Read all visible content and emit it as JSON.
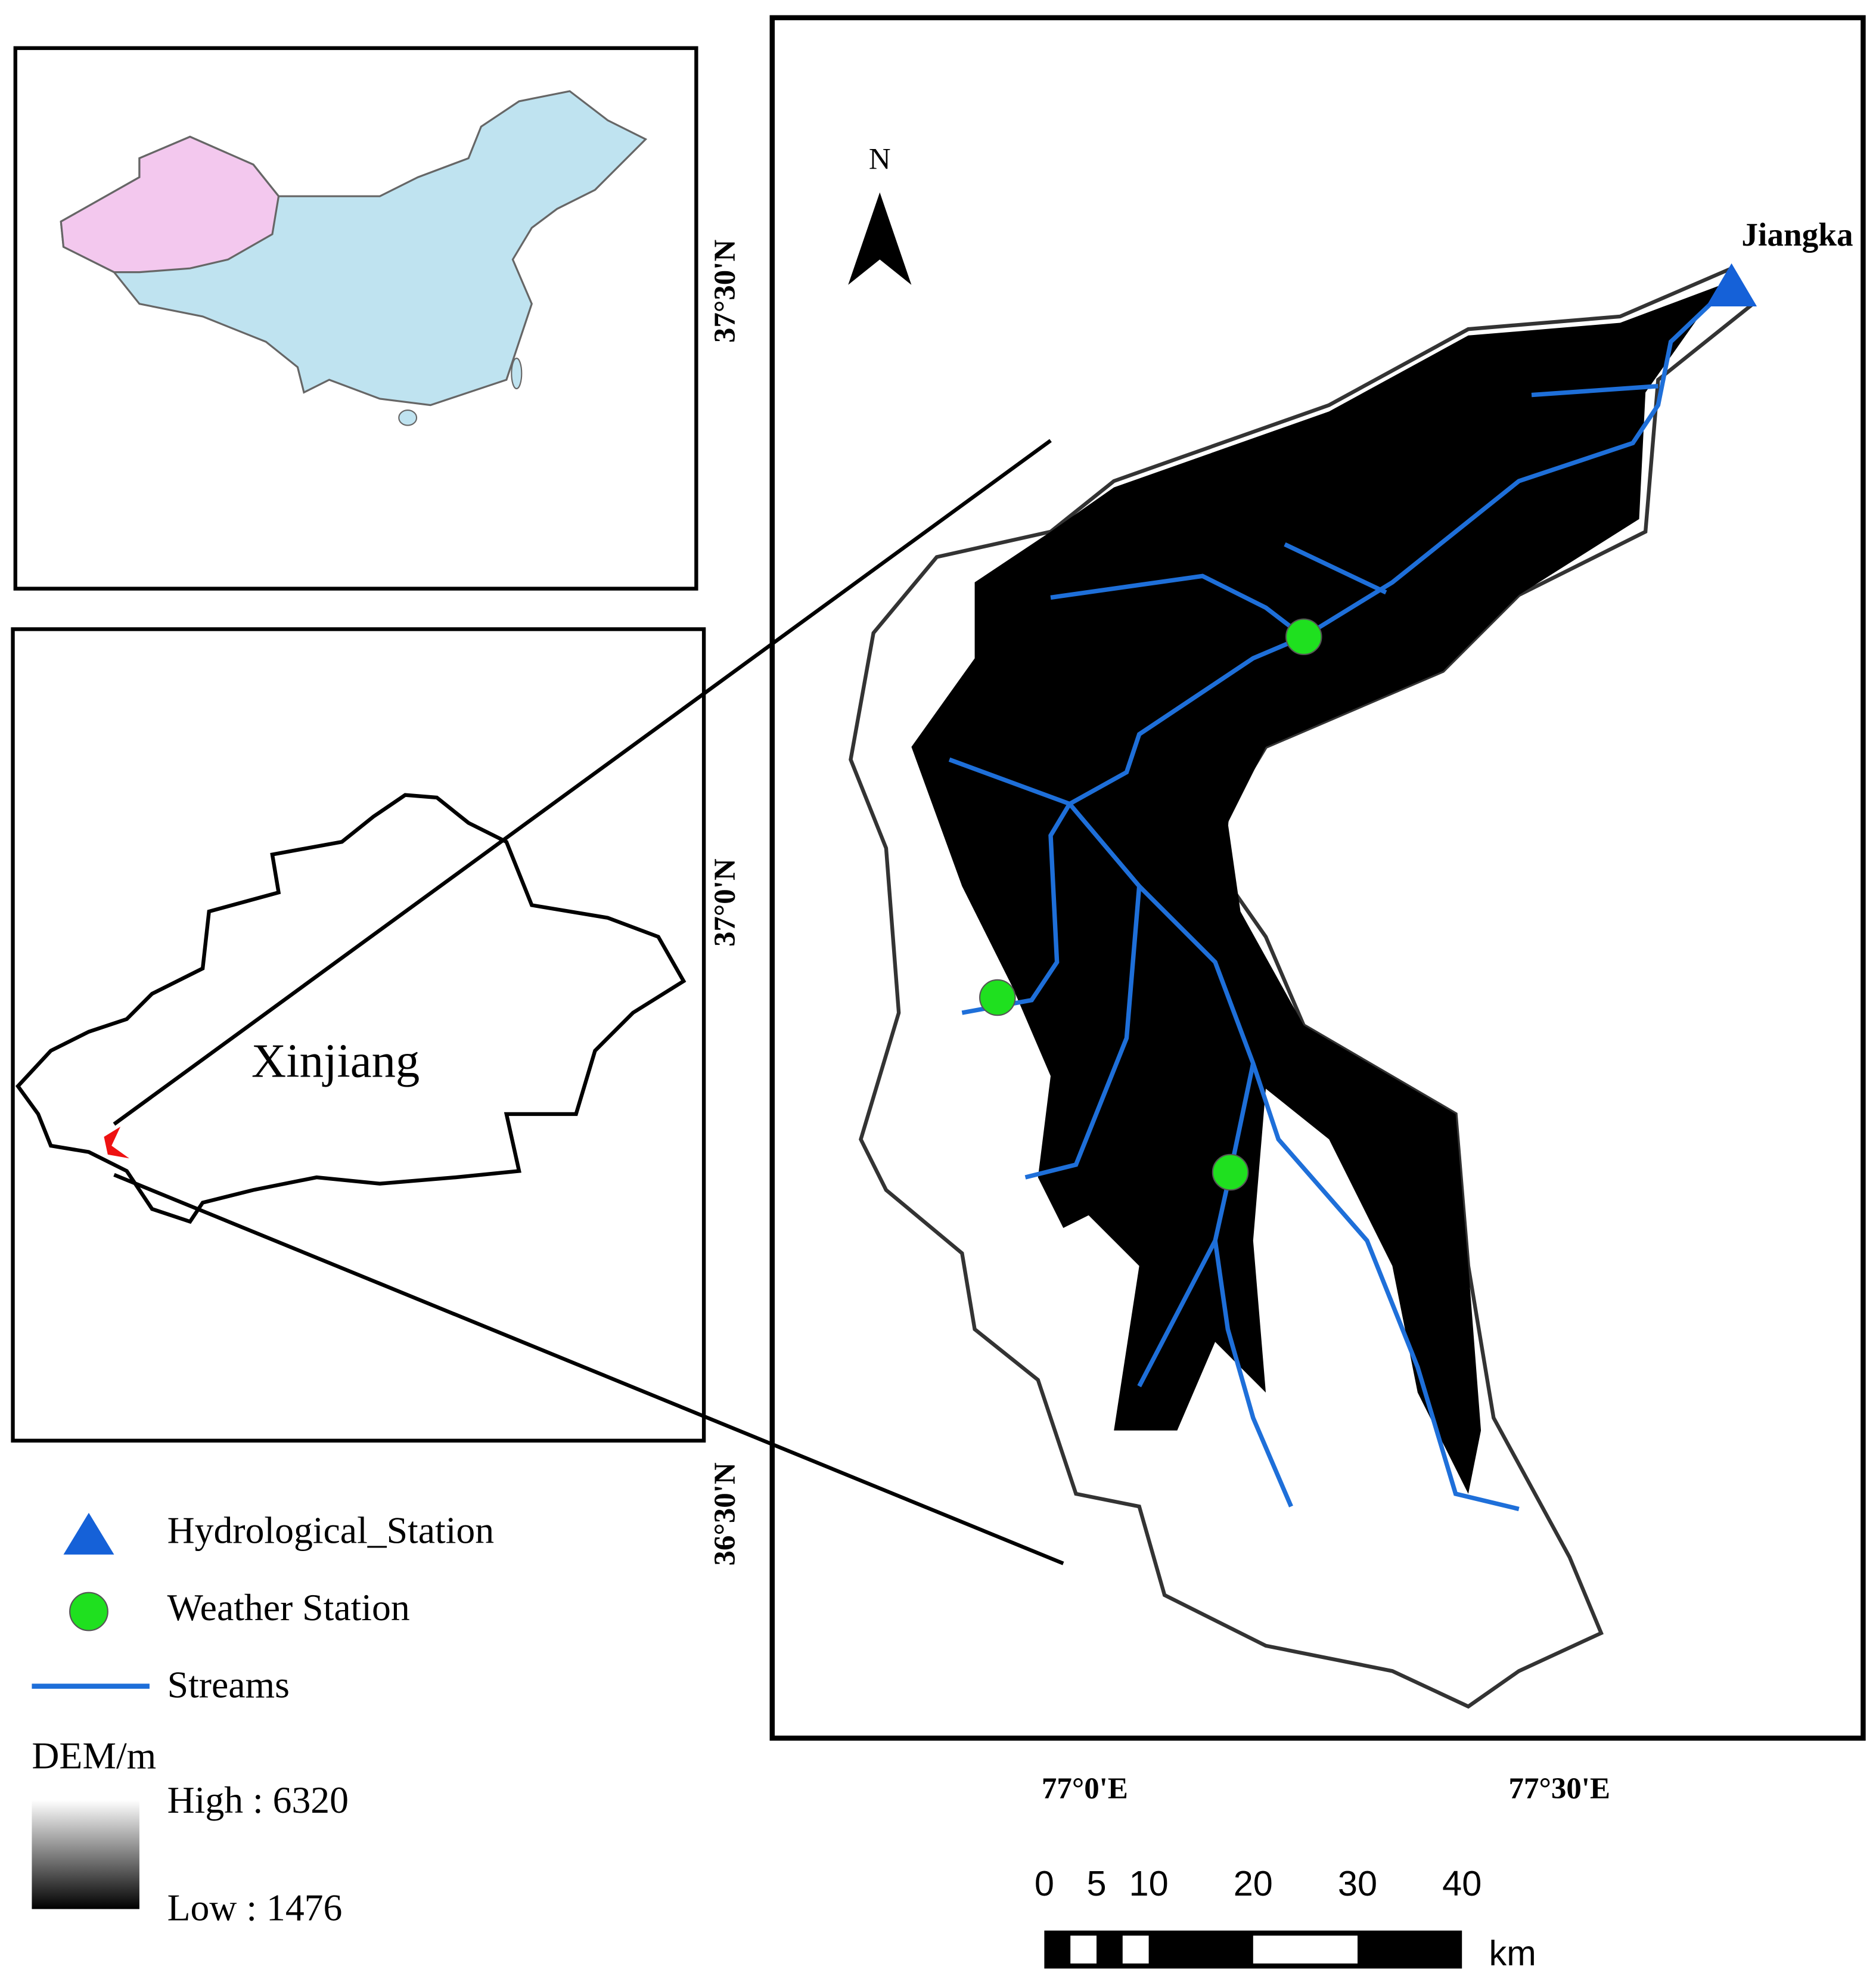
{
  "map": {
    "north_label": "N",
    "station_name": "Jiangka",
    "latitude_labels": [
      "37°30'N",
      "37°0'N",
      "36°30'N"
    ],
    "longitude_labels": [
      "77°0'E",
      "77°30'E"
    ]
  },
  "inset": {
    "region_label": "Xinjiang"
  },
  "legend": {
    "items": [
      "Hydrological_Station",
      "Weather Station",
      "Streams"
    ],
    "dem_title": "DEM/m",
    "dem_high": "High : 6320",
    "dem_low": "Low : 1476"
  },
  "scale_bar": {
    "ticks": [
      0,
      5,
      10,
      20,
      30,
      40
    ],
    "unit": "km"
  }
}
